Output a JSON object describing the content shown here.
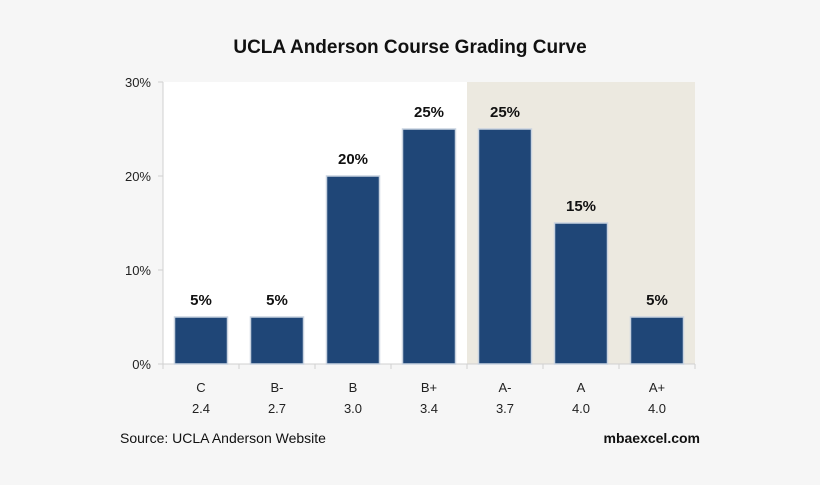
{
  "chart_data": {
    "type": "bar",
    "title": "UCLA Anderson Course Grading Curve",
    "categories": [
      "C",
      "B-",
      "B",
      "B+",
      "A-",
      "A",
      "A+"
    ],
    "gpa": [
      "2.4",
      "2.7",
      "3.0",
      "3.4",
      "3.7",
      "4.0",
      "4.0"
    ],
    "values": [
      5,
      5,
      20,
      25,
      25,
      15,
      5
    ],
    "data_labels": [
      "5%",
      "5%",
      "20%",
      "25%",
      "25%",
      "15%",
      "5%"
    ],
    "ylim": [
      0,
      30
    ],
    "yticks": [
      "0%",
      "10%",
      "20%",
      "30%"
    ],
    "ytick_values": [
      0,
      10,
      20,
      30
    ],
    "highlight_categories": [
      "A-",
      "A",
      "A+"
    ],
    "grid": false,
    "legend": "none",
    "colors": {
      "bar": "#1f4677",
      "bar_border": "#c9d3e0",
      "highlight_bg": "#ece9e0",
      "plot_bg": "#ffffff",
      "page_bg": "#f6f6f6"
    }
  },
  "footer": {
    "source": "Source: UCLA Anderson Website",
    "brand": "mbaexcel.com"
  }
}
